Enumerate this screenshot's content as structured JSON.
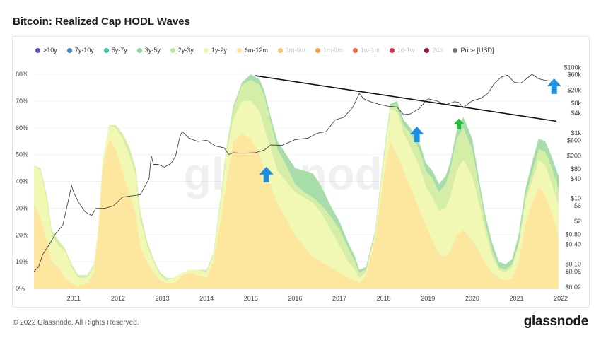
{
  "title": "Bitcoin: Realized Cap HODL Waves",
  "footer": "© 2022 Glassnode. All Rights Reserved.",
  "brand": "glassnode",
  "watermark": "glassnode",
  "legend": [
    {
      "label": ">10y",
      "color": "#5b4fb0",
      "active": true
    },
    {
      "label": "7y-10y",
      "color": "#3a84c0",
      "active": true
    },
    {
      "label": "5y-7y",
      "color": "#3fbfa8",
      "active": true
    },
    {
      "label": "3y-5y",
      "color": "#86d49a",
      "active": true
    },
    {
      "label": "2y-3y",
      "color": "#bde89c",
      "active": true
    },
    {
      "label": "1y-2y",
      "color": "#ecf7a9",
      "active": true
    },
    {
      "label": "6m-12m",
      "color": "#fde59c",
      "active": true
    },
    {
      "label": "3m-6m",
      "color": "#f8c46a",
      "active": false
    },
    {
      "label": "1m-3m",
      "color": "#f3a24a",
      "active": false
    },
    {
      "label": "1w-1m",
      "color": "#ec6a45",
      "active": false
    },
    {
      "label": "1d-1w",
      "color": "#d6304a",
      "active": false
    },
    {
      "label": "24h",
      "color": "#8a1030",
      "active": false
    },
    {
      "label": "Price [USD]",
      "color": "#7a7a7a",
      "active": true
    }
  ],
  "colors": {
    "band_6m_12m": "#fde79f",
    "band_1y_2y": "#f1f8b4",
    "band_2y_3y": "#d4eea8",
    "band_3y_5y": "#a7dda8",
    "price_line": "#444444",
    "trend_line": "#111111",
    "arrow_blue": "#1c8fe0",
    "arrow_green": "#22c13a"
  },
  "chart_data": {
    "type": "area",
    "xlim": [
      2010.6,
      2022.45
    ],
    "x_ticks": [
      2011,
      2012,
      2013,
      2014,
      2015,
      2016,
      2017,
      2018,
      2019,
      2020,
      2021,
      2022
    ],
    "x_tick_labels": [
      "2011",
      "2012",
      "2013",
      "2014",
      "2015",
      "2016",
      "2017",
      "2018",
      "2019",
      "2020",
      "2021",
      "2022"
    ],
    "ylim_left": [
      0,
      84
    ],
    "y_left_ticks": [
      0,
      10,
      20,
      30,
      40,
      50,
      60,
      70,
      80
    ],
    "y_left_tick_labels": [
      "0%",
      "10%",
      "20%",
      "30%",
      "40%",
      "50%",
      "60%",
      "70%",
      "80%"
    ],
    "y_right_scale": "log",
    "ylim_right": [
      0.018,
      130000
    ],
    "y_right_ticks": [
      0.02,
      0.06,
      0.1,
      0.4,
      0.8,
      2,
      6,
      10,
      40,
      80,
      200,
      600,
      1000,
      4000,
      8000,
      20000,
      60000,
      100000
    ],
    "y_right_tick_labels": [
      "$0.02",
      "$0.06",
      "$0.10",
      "$0.40",
      "$0.80",
      "$2",
      "$6",
      "$10",
      "$40",
      "$80",
      "$200",
      "$600",
      "$1k",
      "$4k",
      "$8k",
      "$20k",
      "$60k",
      "$100k"
    ],
    "stack_order": [
      "6m-12m",
      "1y-2y",
      "2y-3y",
      "3y-5y"
    ],
    "bands_x": [
      2010.6,
      2010.75,
      2010.9,
      2011.0,
      2011.15,
      2011.3,
      2011.45,
      2011.6,
      2011.8,
      2011.95,
      2012.05,
      2012.15,
      2012.3,
      2012.45,
      2012.6,
      2012.75,
      2012.9,
      2013.0,
      2013.15,
      2013.3,
      2013.45,
      2013.6,
      2013.75,
      2013.85,
      2013.95,
      2014.1,
      2014.3,
      2014.5,
      2014.65,
      2014.8,
      2014.95,
      2015.1,
      2015.3,
      2015.5,
      2015.7,
      2015.8,
      2015.95,
      2016.1,
      2016.3,
      2016.5,
      2016.7,
      2016.9,
      2017.1,
      2017.3,
      2017.5,
      2017.7,
      2017.85,
      2017.95,
      2018.1,
      2018.3,
      2018.5,
      2018.65,
      2018.8,
      2018.95,
      2019.1,
      2019.3,
      2019.45,
      2019.6,
      2019.75,
      2019.9,
      2020.0,
      2020.15,
      2020.3,
      2020.5,
      2020.65,
      2020.8,
      2020.95,
      2021.1,
      2021.25,
      2021.4,
      2021.55,
      2021.7,
      2021.85,
      2022.0,
      2022.15,
      2022.3,
      2022.45
    ],
    "series": [
      {
        "name": "6m-12m",
        "values": [
          32,
          26,
          18,
          10,
          8,
          4,
          2,
          1,
          2,
          6,
          20,
          45,
          56,
          52,
          44,
          36,
          28,
          16,
          10,
          6,
          3,
          2,
          2,
          3,
          5,
          6,
          5,
          4,
          10,
          24,
          40,
          55,
          58,
          56,
          50,
          45,
          38,
          32,
          26,
          20,
          16,
          12,
          10,
          8,
          6,
          4,
          3,
          2,
          5,
          18,
          42,
          55,
          50,
          44,
          38,
          30,
          24,
          18,
          13,
          12,
          14,
          20,
          22,
          18,
          14,
          9,
          6,
          4,
          3,
          4,
          10,
          24,
          32,
          38,
          35,
          28,
          20
        ]
      },
      {
        "name": "1y-2y",
        "values": [
          14,
          18,
          14,
          10,
          8,
          10,
          6,
          3,
          2,
          2,
          2,
          3,
          5,
          8,
          12,
          14,
          14,
          10,
          6,
          4,
          2,
          1,
          2,
          2,
          1,
          1,
          2,
          2,
          2,
          6,
          10,
          8,
          12,
          14,
          16,
          15,
          14,
          12,
          14,
          16,
          18,
          20,
          18,
          14,
          10,
          6,
          4,
          2,
          1,
          2,
          6,
          12,
          16,
          14,
          15,
          16,
          14,
          16,
          16,
          18,
          20,
          24,
          26,
          24,
          18,
          12,
          6,
          3,
          3,
          4,
          6,
          8,
          8,
          10,
          11,
          11,
          11
        ]
      },
      {
        "name": "2y-3y",
        "values": [
          0,
          1,
          2,
          2,
          2,
          1,
          1,
          1,
          1,
          1,
          0,
          0,
          0,
          1,
          2,
          3,
          3,
          3,
          2,
          1,
          1,
          1,
          0,
          0,
          0,
          0,
          0,
          1,
          1,
          2,
          3,
          4,
          6,
          8,
          10,
          12,
          10,
          8,
          6,
          3,
          2,
          2,
          3,
          5,
          6,
          5,
          3,
          2,
          1,
          0,
          1,
          1,
          2,
          3,
          5,
          6,
          6,
          7,
          7,
          9,
          10,
          12,
          12,
          10,
          6,
          3,
          2,
          1,
          1,
          1,
          1,
          2,
          3,
          4,
          5,
          6,
          6
        ]
      },
      {
        "name": "3y-5y",
        "values": [
          0,
          0,
          0,
          0,
          0,
          0,
          0,
          0,
          0,
          0,
          0,
          0,
          0,
          0,
          0,
          0,
          0,
          0,
          0,
          0,
          0,
          0,
          0,
          0,
          0,
          0,
          0,
          0,
          0,
          0,
          0,
          1,
          1,
          2,
          2,
          2,
          2,
          3,
          4,
          6,
          8,
          9,
          7,
          4,
          3,
          2,
          2,
          1,
          1,
          1,
          1,
          1,
          2,
          2,
          2,
          3,
          3,
          3,
          3,
          3,
          3,
          3,
          4,
          4,
          3,
          3,
          3,
          2,
          2,
          2,
          3,
          3,
          4,
          4,
          4,
          4,
          5
        ]
      }
    ],
    "price": {
      "name": "Price [USD]",
      "x": [
        2010.6,
        2010.7,
        2010.8,
        2010.95,
        2011.1,
        2011.25,
        2011.4,
        2011.45,
        2011.5,
        2011.6,
        2011.75,
        2011.9,
        2012.0,
        2012.2,
        2012.4,
        2012.6,
        2012.8,
        2013.0,
        2013.2,
        2013.25,
        2013.3,
        2013.4,
        2013.55,
        2013.7,
        2013.8,
        2013.9,
        2013.95,
        2014.1,
        2014.3,
        2014.5,
        2014.7,
        2014.9,
        2015.0,
        2015.1,
        2015.3,
        2015.6,
        2015.8,
        2015.95,
        2016.2,
        2016.5,
        2016.8,
        2017.0,
        2017.2,
        2017.4,
        2017.6,
        2017.8,
        2017.95,
        2018.05,
        2018.2,
        2018.4,
        2018.6,
        2018.8,
        2018.95,
        2019.1,
        2019.3,
        2019.5,
        2019.7,
        2019.9,
        2020.1,
        2020.2,
        2020.3,
        2020.5,
        2020.7,
        2020.85,
        2021.0,
        2021.15,
        2021.3,
        2021.45,
        2021.6,
        2021.75,
        2021.85,
        2022.0,
        2022.15,
        2022.3,
        2022.4
      ],
      "values": [
        0.06,
        0.08,
        0.2,
        0.4,
        0.9,
        1.5,
        12,
        25,
        15,
        8,
        4,
        3,
        5,
        5,
        6,
        11,
        12,
        13,
        40,
        200,
        110,
        110,
        90,
        120,
        200,
        800,
        1100,
        700,
        550,
        600,
        400,
        350,
        220,
        250,
        240,
        250,
        300,
        430,
        420,
        620,
        700,
        980,
        1100,
        2500,
        3000,
        6000,
        16000,
        11000,
        9000,
        7500,
        6500,
        6200,
        3600,
        3800,
        5500,
        11000,
        9500,
        7300,
        9000,
        8500,
        6000,
        9500,
        11500,
        16000,
        32000,
        50000,
        58000,
        35000,
        33000,
        48000,
        62000,
        45000,
        40000,
        38000,
        20000
      ]
    },
    "trend_line": {
      "start": [
        2015.6,
        79.5
      ],
      "end": [
        2022.4,
        62.5
      ]
    },
    "annotations": [
      {
        "type": "arrow-up",
        "color": "blue",
        "x": 2015.85,
        "y_percent": 45.5
      },
      {
        "type": "arrow-up",
        "color": "blue",
        "x": 2019.25,
        "y_percent": 60.5
      },
      {
        "type": "arrow-up",
        "color": "green",
        "x": 2020.2,
        "y_percent": 63.5
      },
      {
        "type": "arrow-up",
        "color": "blue",
        "x": 2022.35,
        "y_percent": 78.5
      }
    ]
  }
}
